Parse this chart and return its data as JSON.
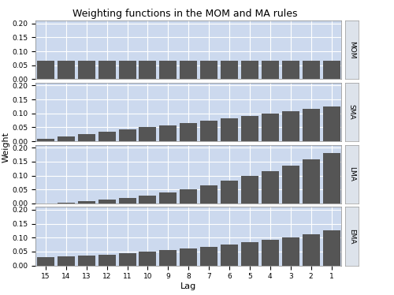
{
  "n": 15,
  "title": "Weighting functions in the MOM and MA rules",
  "xlabel": "Lag",
  "ylabel": "Weight",
  "ylim": [
    0.0,
    0.21
  ],
  "yticks": [
    0.0,
    0.05,
    0.1,
    0.15,
    0.2
  ],
  "lags": [
    15,
    14,
    13,
    12,
    11,
    10,
    9,
    8,
    7,
    6,
    5,
    4,
    3,
    2,
    1
  ],
  "rules": [
    "MOM",
    "SMA",
    "LMA",
    "EMA"
  ],
  "bar_color": "#555555",
  "bg_color": "#ccd9ee",
  "panel_label_bg": "#dde3eb",
  "grid_color": "#ffffff",
  "fig_bg": "#ffffff",
  "lambda_ema": 0.9,
  "title_fontsize": 9,
  "tick_fontsize": 6.5,
  "label_fontsize": 8
}
